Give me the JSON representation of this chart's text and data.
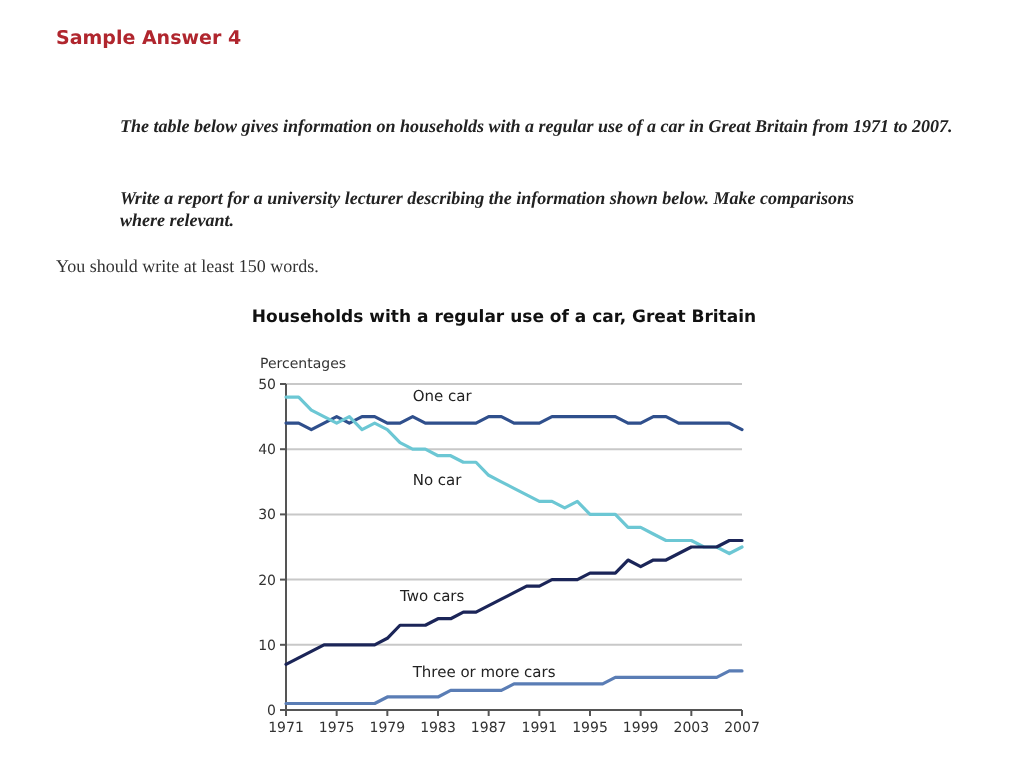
{
  "chart_data": {
    "type": "line",
    "title": "Households with a regular use of a car, Great Britain",
    "ylabel": "Percentages",
    "annotations": [
      "Sample Answer 4",
      "The table below gives information on households with a regular use of a car in Great Britain from 1971 to 2007.",
      "Write a report for a university lecturer describing the information shown below. Make comparisons where relevant.",
      "You should write at least 150 words."
    ],
    "x": [
      1971,
      1972,
      1973,
      1974,
      1975,
      1976,
      1977,
      1978,
      1979,
      1980,
      1981,
      1982,
      1983,
      1984,
      1985,
      1986,
      1987,
      1988,
      1989,
      1990,
      1991,
      1992,
      1993,
      1994,
      1995,
      1996,
      1997,
      1998,
      1999,
      2000,
      2001,
      2002,
      2003,
      2004,
      2005,
      2006,
      2007
    ],
    "series": [
      {
        "name": "One car",
        "color": "#2f4f8c",
        "values": [
          44,
          44,
          43,
          44,
          45,
          44,
          45,
          45,
          44,
          44,
          45,
          44,
          44,
          44,
          44,
          44,
          45,
          45,
          44,
          44,
          44,
          45,
          45,
          45,
          45,
          45,
          45,
          44,
          44,
          45,
          45,
          44,
          44,
          44,
          44,
          44,
          43
        ]
      },
      {
        "name": "No car",
        "color": "#6cc7d4",
        "values": [
          48,
          48,
          46,
          45,
          44,
          45,
          43,
          44,
          43,
          41,
          40,
          40,
          39,
          39,
          38,
          38,
          36,
          35,
          34,
          33,
          32,
          32,
          31,
          32,
          30,
          30,
          30,
          28,
          28,
          27,
          26,
          26,
          26,
          25,
          25,
          24,
          25
        ]
      },
      {
        "name": "Two cars",
        "color": "#1b2558",
        "values": [
          7,
          8,
          9,
          10,
          10,
          10,
          10,
          10,
          11,
          13,
          13,
          13,
          14,
          14,
          15,
          15,
          16,
          17,
          18,
          19,
          19,
          20,
          20,
          20,
          21,
          21,
          21,
          23,
          22,
          23,
          23,
          24,
          25,
          25,
          25,
          26,
          26
        ]
      },
      {
        "name": "Three or more cars",
        "color": "#5a7db5",
        "values": [
          1,
          1,
          1,
          1,
          1,
          1,
          1,
          1,
          2,
          2,
          2,
          2,
          2,
          3,
          3,
          3,
          3,
          3,
          4,
          4,
          4,
          4,
          4,
          4,
          4,
          4,
          5,
          5,
          5,
          5,
          5,
          5,
          5,
          5,
          5,
          6,
          6
        ]
      }
    ],
    "xlim": [
      1971,
      2007
    ],
    "xticks": [
      1971,
      1975,
      1979,
      1983,
      1987,
      1991,
      1995,
      1999,
      2003,
      2007
    ],
    "ylim": [
      0,
      50
    ],
    "yticks": [
      0,
      10,
      20,
      30,
      40,
      50
    ],
    "grid": "y",
    "line_style": "solid"
  }
}
